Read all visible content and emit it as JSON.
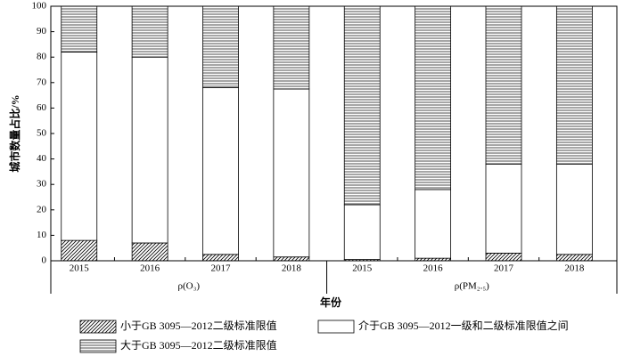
{
  "chart_data": {
    "type": "stacked_bar",
    "y_label": "城市数量占比/%",
    "x_label": "年份",
    "categories": [
      "2015",
      "2016",
      "2017",
      "2018",
      "2015",
      "2016",
      "2017",
      "2018"
    ],
    "group_labels": [
      "ρ(O₃)",
      "ρ(PM₂.₅)"
    ],
    "series": [
      {
        "name": "小于GB 3095—2012二级标准限值",
        "hatch": "diagonal",
        "color": "#000000",
        "values": [
          8,
          7,
          2.5,
          1.5,
          0.5,
          1,
          3,
          2.5
        ]
      },
      {
        "name": "介于GB 3095—2012一级和二级标准限值之间",
        "hatch": "none",
        "color": "#000000",
        "values": [
          74,
          73,
          65.5,
          66,
          21.5,
          27,
          35,
          35.5
        ]
      },
      {
        "name": "大于GB 3095—2012二级标准限值",
        "hatch": "horizontal",
        "color": "#000000",
        "values": [
          18,
          20,
          32,
          32.5,
          78,
          72,
          62,
          62
        ]
      }
    ],
    "ylim": [
      0,
      100
    ],
    "yticks": [
      0,
      10,
      20,
      30,
      40,
      50,
      60,
      70,
      80,
      90,
      100
    ]
  }
}
